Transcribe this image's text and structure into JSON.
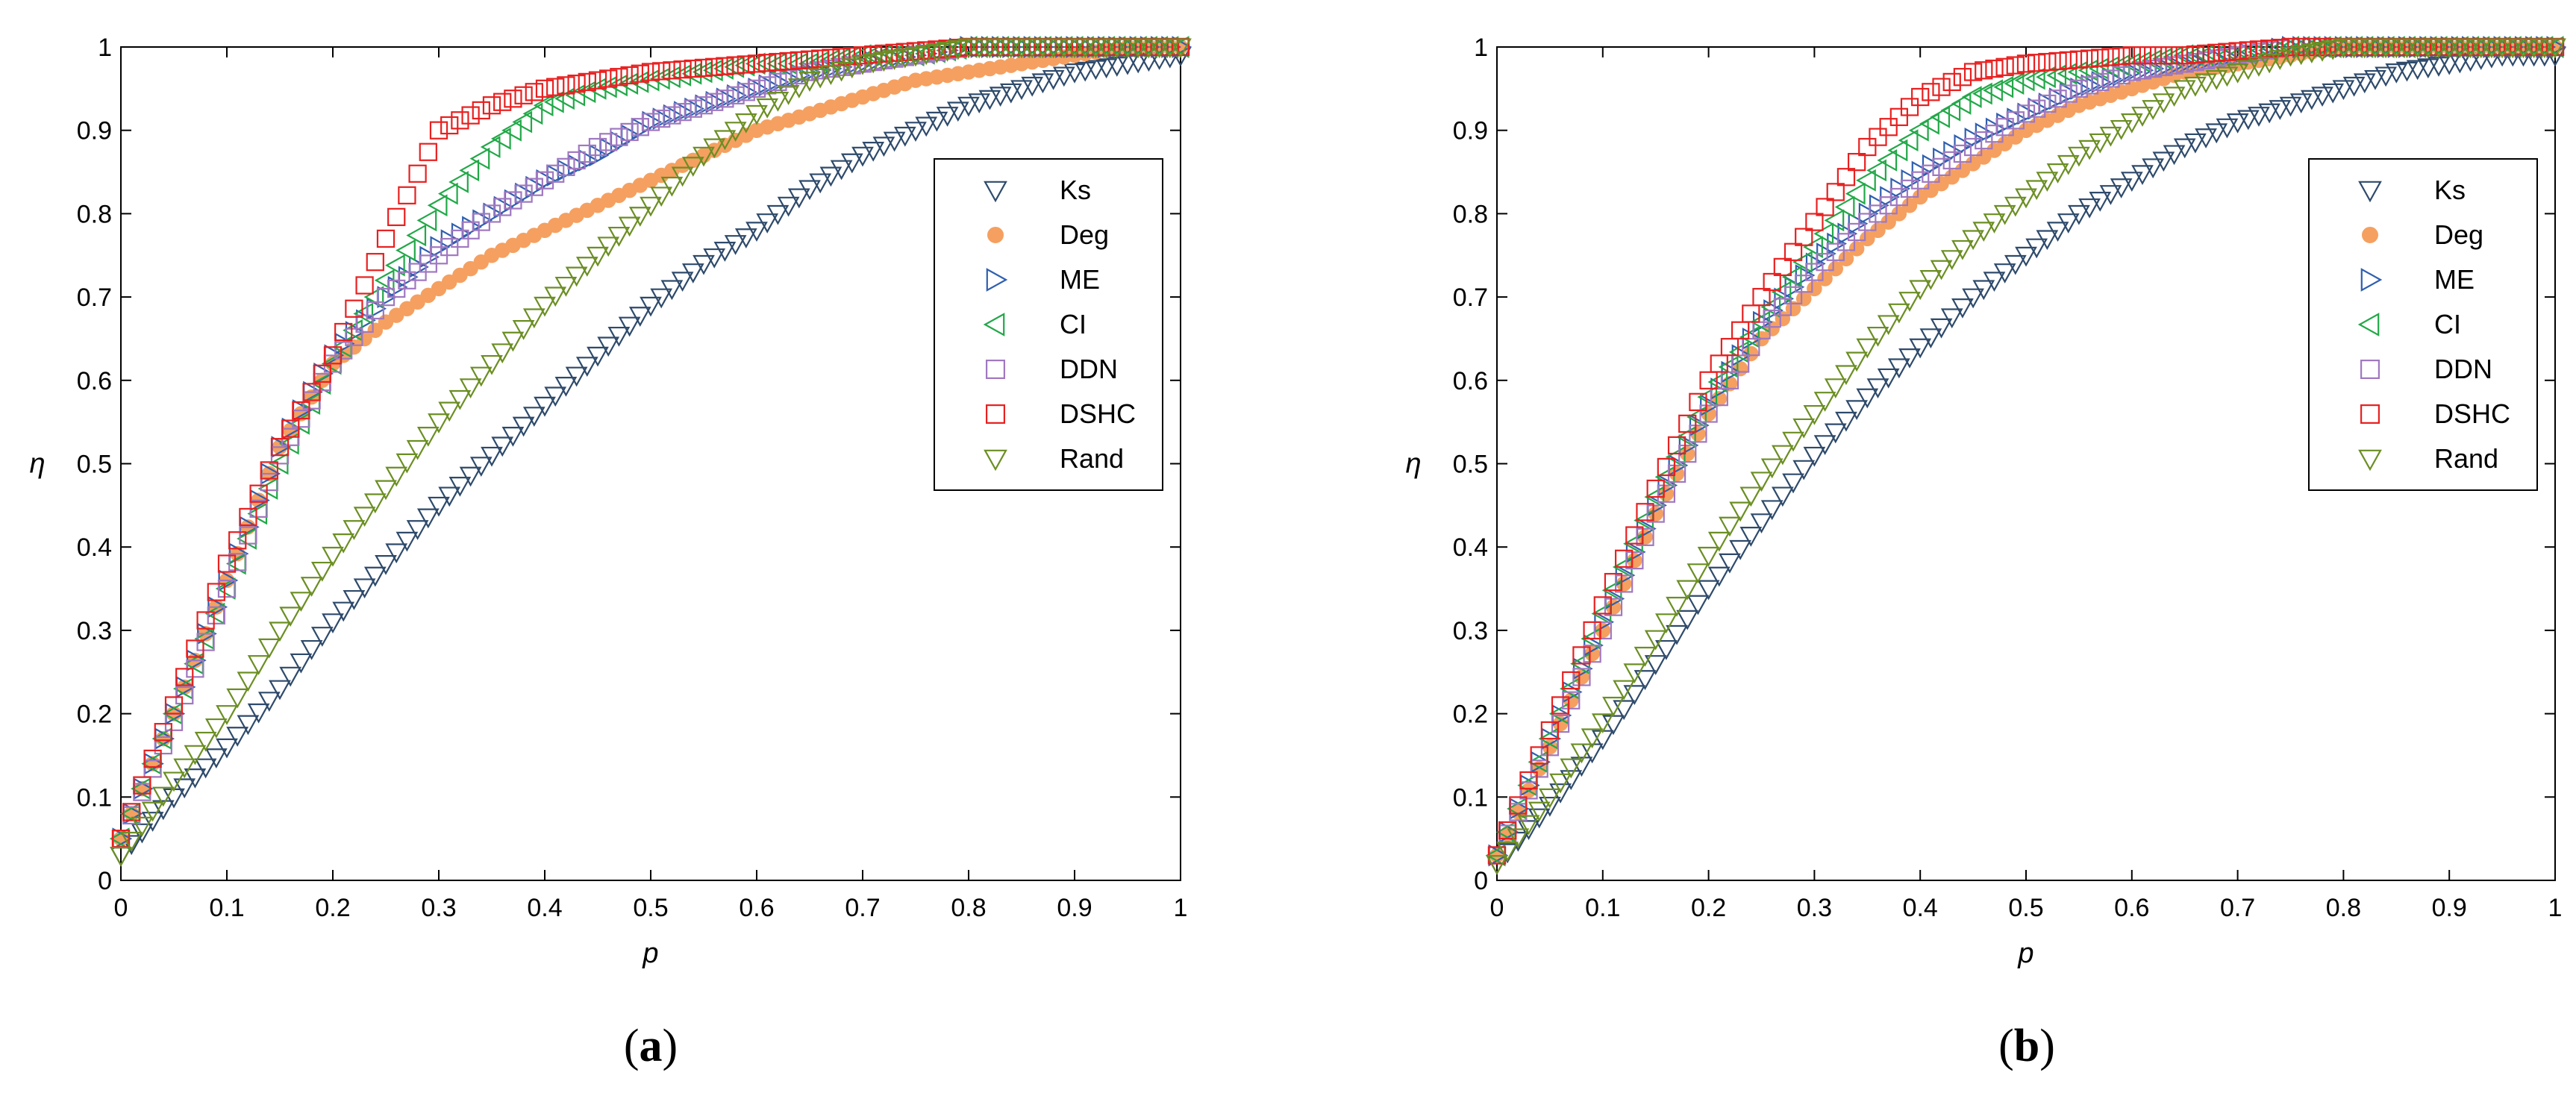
{
  "chart_data": [
    {
      "type": "scatter",
      "panel_label": "(a)",
      "panel_letter": "a",
      "xlabel": "p",
      "ylabel": "η",
      "xlim": [
        0,
        1
      ],
      "ylim": [
        0,
        1
      ],
      "xticks": [
        "0",
        "0.1",
        "0.2",
        "0.3",
        "0.4",
        "0.5",
        "0.6",
        "0.7",
        "0.8",
        "0.9",
        "1"
      ],
      "yticks": [
        "0",
        "0.1",
        "0.2",
        "0.3",
        "0.4",
        "0.5",
        "0.6",
        "0.7",
        "0.8",
        "0.9",
        "1"
      ],
      "grid": false,
      "legend_position": "upper-right",
      "series": [
        {
          "name": "Ks",
          "marker": "triangle-down",
          "color": "#2e4a6b",
          "x": [
            0,
            0.05,
            0.1,
            0.15,
            0.2,
            0.25,
            0.3,
            0.35,
            0.4,
            0.45,
            0.5,
            0.55,
            0.6,
            0.65,
            0.7,
            0.75,
            0.8,
            0.85,
            0.9,
            0.95,
            1.0
          ],
          "y": [
            0.03,
            0.1,
            0.16,
            0.23,
            0.31,
            0.38,
            0.45,
            0.51,
            0.57,
            0.63,
            0.69,
            0.74,
            0.78,
            0.83,
            0.87,
            0.9,
            0.93,
            0.95,
            0.97,
            0.98,
            0.99
          ]
        },
        {
          "name": "Deg",
          "marker": "filled-circle",
          "color": "#f5a060",
          "x": [
            0,
            0.05,
            0.1,
            0.15,
            0.2,
            0.25,
            0.3,
            0.35,
            0.4,
            0.45,
            0.5,
            0.55,
            0.6,
            0.65,
            0.7,
            0.75,
            0.8,
            0.85,
            0.9,
            0.95,
            1.0
          ],
          "y": [
            0.05,
            0.2,
            0.36,
            0.52,
            0.62,
            0.67,
            0.71,
            0.75,
            0.78,
            0.81,
            0.84,
            0.87,
            0.9,
            0.92,
            0.94,
            0.96,
            0.97,
            0.98,
            0.99,
            1.0,
            1.0
          ]
        },
        {
          "name": "ME",
          "marker": "triangle-right",
          "color": "#2f5fb0",
          "x": [
            0,
            0.05,
            0.1,
            0.15,
            0.2,
            0.25,
            0.3,
            0.35,
            0.4,
            0.45,
            0.5,
            0.55,
            0.6,
            0.65,
            0.7,
            0.75,
            0.8,
            0.85,
            0.9,
            0.95,
            1.0
          ],
          "y": [
            0.05,
            0.2,
            0.36,
            0.52,
            0.63,
            0.7,
            0.76,
            0.8,
            0.84,
            0.87,
            0.91,
            0.93,
            0.95,
            0.97,
            0.98,
            0.99,
            1.0,
            1.0,
            1.0,
            1.0,
            1.0
          ]
        },
        {
          "name": "CI",
          "marker": "triangle-left",
          "color": "#22a848",
          "x": [
            0,
            0.05,
            0.1,
            0.15,
            0.2,
            0.25,
            0.3,
            0.35,
            0.4,
            0.45,
            0.5,
            0.55,
            0.6,
            0.65,
            0.7,
            0.75,
            0.8,
            0.85,
            0.9,
            0.95,
            1.0
          ],
          "y": [
            0.05,
            0.2,
            0.35,
            0.5,
            0.62,
            0.72,
            0.81,
            0.88,
            0.93,
            0.95,
            0.96,
            0.97,
            0.98,
            0.98,
            0.99,
            0.99,
            1.0,
            1.0,
            1.0,
            1.0,
            1.0
          ]
        },
        {
          "name": "DDN",
          "marker": "square",
          "color": "#a078c0",
          "x": [
            0,
            0.05,
            0.1,
            0.15,
            0.2,
            0.25,
            0.3,
            0.35,
            0.4,
            0.45,
            0.5,
            0.55,
            0.6,
            0.65,
            0.7,
            0.75,
            0.8,
            0.85,
            0.9,
            0.95,
            1.0
          ],
          "y": [
            0.05,
            0.19,
            0.35,
            0.51,
            0.62,
            0.7,
            0.75,
            0.8,
            0.84,
            0.88,
            0.91,
            0.93,
            0.95,
            0.97,
            0.98,
            0.99,
            1.0,
            1.0,
            1.0,
            1.0,
            1.0
          ]
        },
        {
          "name": "DSHC",
          "marker": "square",
          "color": "#e82020",
          "x": [
            0,
            0.05,
            0.1,
            0.15,
            0.2,
            0.25,
            0.3,
            0.35,
            0.4,
            0.45,
            0.5,
            0.55,
            0.6,
            0.65,
            0.7,
            0.75,
            0.8,
            0.85,
            0.9,
            0.95,
            1.0
          ],
          "y": [
            0.05,
            0.21,
            0.38,
            0.52,
            0.63,
            0.77,
            0.9,
            0.93,
            0.95,
            0.96,
            0.97,
            0.975,
            0.98,
            0.985,
            0.99,
            0.995,
            1.0,
            1.0,
            1.0,
            1.0,
            1.0
          ]
        },
        {
          "name": "Rand",
          "marker": "triangle-down",
          "color": "#6b8e23",
          "x": [
            0,
            0.05,
            0.1,
            0.15,
            0.2,
            0.25,
            0.3,
            0.35,
            0.4,
            0.45,
            0.5,
            0.55,
            0.6,
            0.65,
            0.7,
            0.75,
            0.8,
            0.85,
            0.9,
            0.95,
            1.0
          ],
          "y": [
            0.03,
            0.12,
            0.2,
            0.3,
            0.39,
            0.47,
            0.55,
            0.62,
            0.69,
            0.75,
            0.81,
            0.87,
            0.92,
            0.96,
            0.98,
            0.99,
            1.0,
            1.0,
            1.0,
            1.0,
            1.0
          ]
        }
      ]
    },
    {
      "type": "scatter",
      "panel_label": "(b)",
      "panel_letter": "b",
      "xlabel": "p",
      "ylabel": "η",
      "xlim": [
        0,
        1
      ],
      "ylim": [
        0,
        1
      ],
      "xticks": [
        "0",
        "0.1",
        "0.2",
        "0.3",
        "0.4",
        "0.5",
        "0.6",
        "0.7",
        "0.8",
        "0.9",
        "1"
      ],
      "yticks": [
        "0",
        "0.1",
        "0.2",
        "0.3",
        "0.4",
        "0.5",
        "0.6",
        "0.7",
        "0.8",
        "0.9",
        "1"
      ],
      "grid": false,
      "legend_position": "upper-right",
      "series": [
        {
          "name": "Ks",
          "marker": "triangle-down",
          "color": "#2e4a6b",
          "x": [
            0,
            0.05,
            0.1,
            0.15,
            0.2,
            0.25,
            0.3,
            0.35,
            0.4,
            0.45,
            0.5,
            0.55,
            0.6,
            0.65,
            0.7,
            0.75,
            0.8,
            0.85,
            0.9,
            0.95,
            1.0
          ],
          "y": [
            0.02,
            0.09,
            0.17,
            0.26,
            0.35,
            0.43,
            0.51,
            0.58,
            0.64,
            0.7,
            0.75,
            0.8,
            0.84,
            0.88,
            0.91,
            0.93,
            0.95,
            0.97,
            0.98,
            0.99,
            0.99
          ]
        },
        {
          "name": "Deg",
          "marker": "filled-circle",
          "color": "#f5a060",
          "x": [
            0,
            0.05,
            0.1,
            0.15,
            0.2,
            0.25,
            0.3,
            0.35,
            0.4,
            0.45,
            0.5,
            0.55,
            0.6,
            0.65,
            0.7,
            0.75,
            0.8,
            0.85,
            0.9,
            0.95,
            1.0
          ],
          "y": [
            0.03,
            0.16,
            0.3,
            0.44,
            0.56,
            0.65,
            0.71,
            0.77,
            0.82,
            0.86,
            0.9,
            0.93,
            0.95,
            0.97,
            0.98,
            0.99,
            1.0,
            1.0,
            1.0,
            1.0,
            1.0
          ]
        },
        {
          "name": "ME",
          "marker": "triangle-right",
          "color": "#2f5fb0",
          "x": [
            0,
            0.05,
            0.1,
            0.15,
            0.2,
            0.25,
            0.3,
            0.35,
            0.4,
            0.45,
            0.5,
            0.55,
            0.6,
            0.65,
            0.7,
            0.75,
            0.8,
            0.85,
            0.9,
            0.95,
            1.0
          ],
          "y": [
            0.03,
            0.17,
            0.31,
            0.45,
            0.57,
            0.67,
            0.74,
            0.8,
            0.85,
            0.89,
            0.92,
            0.95,
            0.97,
            0.98,
            0.99,
            1.0,
            1.0,
            1.0,
            1.0,
            1.0,
            1.0
          ]
        },
        {
          "name": "CI",
          "marker": "triangle-left",
          "color": "#22a848",
          "x": [
            0,
            0.05,
            0.1,
            0.15,
            0.2,
            0.25,
            0.3,
            0.35,
            0.4,
            0.45,
            0.5,
            0.55,
            0.6,
            0.65,
            0.7,
            0.75,
            0.8,
            0.85,
            0.9,
            0.95,
            1.0
          ],
          "y": [
            0.03,
            0.17,
            0.32,
            0.46,
            0.58,
            0.67,
            0.76,
            0.84,
            0.9,
            0.94,
            0.96,
            0.97,
            0.98,
            0.99,
            0.99,
            1.0,
            1.0,
            1.0,
            1.0,
            1.0,
            1.0
          ]
        },
        {
          "name": "DDN",
          "marker": "square",
          "color": "#a078c0",
          "x": [
            0,
            0.05,
            0.1,
            0.15,
            0.2,
            0.25,
            0.3,
            0.35,
            0.4,
            0.45,
            0.5,
            0.55,
            0.6,
            0.65,
            0.7,
            0.75,
            0.8,
            0.85,
            0.9,
            0.95,
            1.0
          ],
          "y": [
            0.03,
            0.16,
            0.3,
            0.44,
            0.56,
            0.66,
            0.73,
            0.79,
            0.84,
            0.88,
            0.92,
            0.95,
            0.97,
            0.98,
            0.99,
            1.0,
            1.0,
            1.0,
            1.0,
            1.0,
            1.0
          ]
        },
        {
          "name": "DSHC",
          "marker": "square",
          "color": "#e82020",
          "x": [
            0,
            0.05,
            0.1,
            0.15,
            0.2,
            0.25,
            0.3,
            0.35,
            0.4,
            0.45,
            0.5,
            0.55,
            0.6,
            0.65,
            0.7,
            0.75,
            0.8,
            0.85,
            0.9,
            0.95,
            1.0
          ],
          "y": [
            0.03,
            0.18,
            0.33,
            0.47,
            0.6,
            0.7,
            0.79,
            0.88,
            0.94,
            0.97,
            0.98,
            0.985,
            0.99,
            0.99,
            0.995,
            1.0,
            1.0,
            1.0,
            1.0,
            1.0,
            1.0
          ]
        },
        {
          "name": "Rand",
          "marker": "triangle-down",
          "color": "#6b8e23",
          "x": [
            0,
            0.05,
            0.1,
            0.15,
            0.2,
            0.25,
            0.3,
            0.35,
            0.4,
            0.45,
            0.5,
            0.55,
            0.6,
            0.65,
            0.7,
            0.75,
            0.8,
            0.85,
            0.9,
            0.95,
            1.0
          ],
          "y": [
            0.02,
            0.1,
            0.19,
            0.29,
            0.39,
            0.48,
            0.56,
            0.64,
            0.71,
            0.77,
            0.82,
            0.87,
            0.91,
            0.95,
            0.97,
            0.99,
            1.0,
            1.0,
            1.0,
            1.0,
            1.0
          ]
        }
      ]
    }
  ]
}
